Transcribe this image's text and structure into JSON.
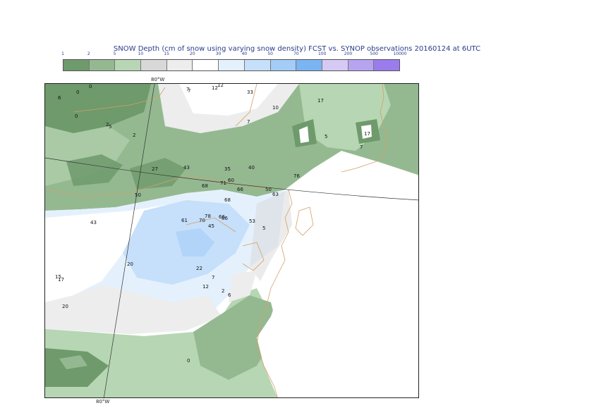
{
  "title": "SNOW Depth (cm of snow using varying snow density) FCST vs. SYNOP observations  20160124 at 6UTC",
  "legend": {
    "ticks": [
      "1",
      "2",
      "5",
      "10",
      "15",
      "20",
      "30",
      "40",
      "50",
      "70",
      "100",
      "200",
      "500",
      "10000"
    ],
    "colors": [
      "#6e9a6c",
      "#94b991",
      "#b7d6b3",
      "#d8d8d8",
      "#ededed",
      "#ffffff",
      "#e4f1fd",
      "#c6dffa",
      "#a3cdf7",
      "#7ab4f2",
      "#d6c9f4",
      "#b7a4f0",
      "#9b7cec"
    ]
  },
  "axis": {
    "lon_top": "80°W",
    "lon_bottom": "80°W"
  },
  "observations": [
    {
      "v": "0"
    },
    {
      "v": "0"
    },
    {
      "v": "6"
    },
    {
      "v": "0"
    },
    {
      "v": "2"
    },
    {
      "v": "5"
    },
    {
      "v": "2"
    },
    {
      "v": "7"
    },
    {
      "v": "7"
    },
    {
      "v": "12"
    },
    {
      "v": "12"
    },
    {
      "v": "33"
    },
    {
      "v": "10"
    },
    {
      "v": "7"
    },
    {
      "v": "17"
    },
    {
      "v": "5"
    },
    {
      "v": "17"
    },
    {
      "v": "7"
    },
    {
      "v": "27"
    },
    {
      "v": "43"
    },
    {
      "v": "35"
    },
    {
      "v": "40"
    },
    {
      "v": "76"
    },
    {
      "v": "50"
    },
    {
      "v": "68"
    },
    {
      "v": "71"
    },
    {
      "v": "60"
    },
    {
      "v": "66"
    },
    {
      "v": "50"
    },
    {
      "v": "63"
    },
    {
      "v": "68"
    },
    {
      "v": "43"
    },
    {
      "v": "61"
    },
    {
      "v": "78"
    },
    {
      "v": "70"
    },
    {
      "v": "66"
    },
    {
      "v": "86"
    },
    {
      "v": "45"
    },
    {
      "v": "53"
    },
    {
      "v": "5"
    },
    {
      "v": "20"
    },
    {
      "v": "22"
    },
    {
      "v": "7"
    },
    {
      "v": "12"
    },
    {
      "v": "2"
    },
    {
      "v": "6"
    },
    {
      "v": "15"
    },
    {
      "v": "17"
    },
    {
      "v": "20"
    },
    {
      "v": "0"
    }
  ]
}
